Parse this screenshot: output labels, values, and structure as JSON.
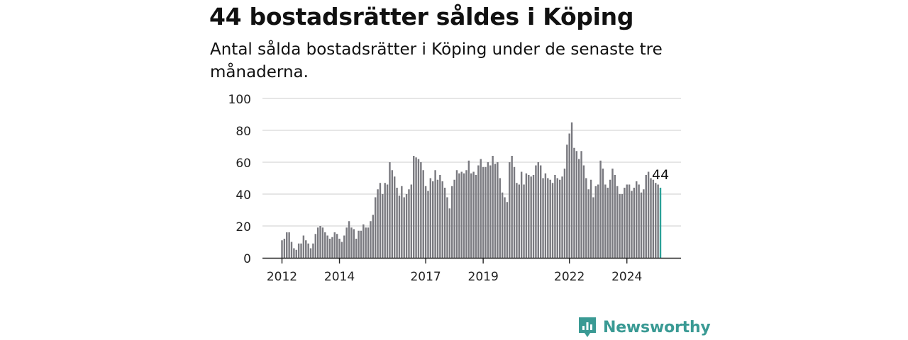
{
  "header": {
    "title": "44 bostadsrätter såldes i Köping",
    "subtitle": "Antal sålda bostadsrätter i Köping under de senaste tre månaderna."
  },
  "brand": {
    "name": "Newsworthy",
    "icon": "newsworthy-logo-icon",
    "color": "#3a9a94"
  },
  "colors": {
    "bar": "#7a7a80",
    "highlight": "#2aa198",
    "grid": "#d6d6d6",
    "axis": "#222222"
  },
  "chart_data": {
    "type": "bar",
    "title": "44 bostadsrätter såldes i Köping",
    "subtitle": "Antal sålda bostadsrätter i Köping under de senaste tre månaderna.",
    "xlabel": "",
    "ylabel": "",
    "ylim": [
      0,
      100
    ],
    "yticks": [
      0,
      20,
      40,
      60,
      80,
      100
    ],
    "xticks": [
      "2012",
      "2014",
      "2017",
      "2019",
      "2022",
      "2024"
    ],
    "grid": true,
    "start": "2012-01",
    "frequency": "monthly",
    "values": [
      11,
      12,
      16,
      16,
      10,
      6,
      5,
      9,
      9,
      14,
      11,
      9,
      6,
      9,
      15,
      19,
      20,
      19,
      16,
      14,
      12,
      13,
      16,
      15,
      12,
      10,
      14,
      19,
      23,
      19,
      18,
      12,
      17,
      17,
      21,
      19,
      19,
      23,
      27,
      38,
      43,
      47,
      40,
      47,
      46,
      60,
      55,
      51,
      44,
      39,
      45,
      38,
      40,
      43,
      46,
      64,
      63,
      62,
      60,
      55,
      45,
      42,
      50,
      48,
      55,
      49,
      52,
      48,
      44,
      38,
      31,
      45,
      49,
      55,
      53,
      54,
      53,
      55,
      61,
      53,
      54,
      52,
      58,
      62,
      57,
      57,
      60,
      58,
      64,
      59,
      60,
      50,
      41,
      38,
      35,
      60,
      64,
      57,
      47,
      46,
      54,
      46,
      53,
      52,
      51,
      52,
      58,
      60,
      58,
      50,
      53,
      50,
      49,
      47,
      52,
      50,
      49,
      51,
      56,
      71,
      78,
      85,
      69,
      67,
      62,
      67,
      58,
      50,
      43,
      49,
      38,
      45,
      46,
      61,
      56,
      46,
      44,
      49,
      56,
      52,
      45,
      40,
      40,
      44,
      46,
      46,
      42,
      44,
      48,
      46,
      41,
      43,
      52,
      54,
      50,
      49,
      47,
      46,
      44
    ],
    "last_value_label": "44"
  }
}
